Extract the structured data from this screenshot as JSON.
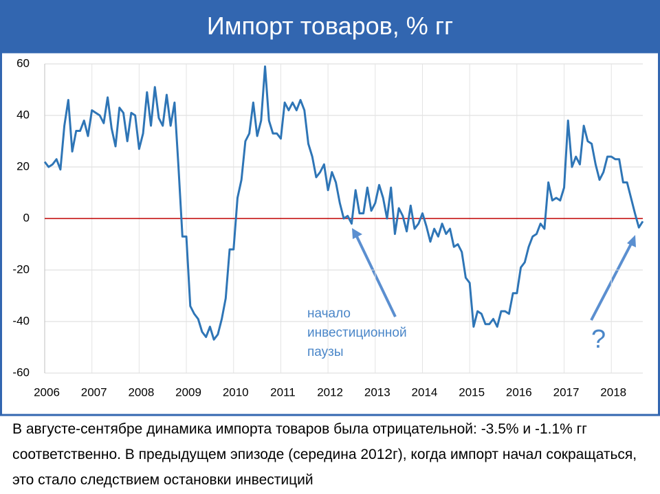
{
  "slide_title": "Импорт товаров, % гг",
  "chart_data": {
    "type": "line",
    "categories": [
      "2006",
      null,
      null,
      null,
      null,
      null,
      null,
      null,
      null,
      null,
      null,
      null,
      "2007",
      null,
      null,
      null,
      null,
      null,
      null,
      null,
      null,
      null,
      null,
      null,
      "2008",
      null,
      null,
      null,
      null,
      null,
      null,
      null,
      null,
      null,
      null,
      null,
      "2009",
      null,
      null,
      null,
      null,
      null,
      null,
      null,
      null,
      null,
      null,
      null,
      "2010",
      null,
      null,
      null,
      null,
      null,
      null,
      null,
      null,
      null,
      null,
      null,
      "2011",
      null,
      null,
      null,
      null,
      null,
      null,
      null,
      null,
      null,
      null,
      null,
      "2012",
      null,
      null,
      null,
      null,
      null,
      null,
      null,
      null,
      null,
      null,
      null,
      "2013",
      null,
      null,
      null,
      null,
      null,
      null,
      null,
      null,
      null,
      null,
      null,
      "2014",
      null,
      null,
      null,
      null,
      null,
      null,
      null,
      null,
      null,
      null,
      null,
      "2015",
      null,
      null,
      null,
      null,
      null,
      null,
      null,
      null,
      null,
      null,
      null,
      "2016",
      null,
      null,
      null,
      null,
      null,
      null,
      null,
      null,
      null,
      null,
      null,
      "2017",
      null,
      null,
      null,
      null,
      null,
      null,
      null,
      null,
      null,
      null,
      null,
      "2018",
      null,
      null,
      null,
      null,
      null,
      null,
      null,
      null
    ],
    "series": [
      {
        "name": "Импорт товаров",
        "color": "#2e75b6",
        "values": [
          22,
          20,
          21,
          23,
          19,
          36,
          46,
          26,
          34,
          34,
          38,
          32,
          42,
          41,
          40,
          37,
          47,
          35,
          28,
          43,
          41,
          30,
          41,
          40,
          27,
          33,
          49,
          36,
          51,
          39,
          36,
          48,
          36,
          45,
          20,
          -7,
          -7,
          -34,
          -37,
          -39,
          -44,
          -46,
          -42,
          -47,
          -45,
          -39,
          -31,
          -12,
          -12,
          8,
          15,
          30,
          33,
          45,
          32,
          38,
          59,
          38,
          33,
          33,
          31,
          45,
          42,
          45,
          42,
          46,
          42,
          29,
          24,
          16,
          18,
          21,
          11,
          18,
          14,
          6,
          0,
          1,
          -2,
          11,
          2,
          2,
          12,
          3,
          6,
          13,
          8,
          0,
          12,
          -6,
          4,
          1,
          -5,
          5,
          -4,
          -2,
          2,
          -3,
          -9,
          -4,
          -7,
          -2,
          -6,
          -4,
          -11,
          -10,
          -13,
          -23,
          -25,
          -42,
          -36,
          -37,
          -41,
          -41,
          -39,
          -42,
          -36,
          -36,
          -37,
          -29,
          -29,
          -19,
          -17,
          -11,
          -7,
          -6,
          -2,
          -4,
          14,
          7,
          8,
          7,
          12,
          38,
          20,
          24,
          21,
          36,
          30,
          29,
          21,
          15,
          18,
          24,
          24,
          23,
          23,
          14,
          14,
          8,
          2,
          -3.5,
          -1.1
        ]
      }
    ],
    "ylim": [
      -60,
      60
    ],
    "yticks": [
      -60,
      -40,
      -20,
      0,
      20,
      40,
      60
    ],
    "grid": true,
    "zero_line_color": "#c00000",
    "annotation_pause": [
      "начало",
      "инвестиционной",
      "паузы"
    ],
    "annotation_question": "?"
  },
  "footer_text": "В августе-сентябре динамика импорта товаров была отрицательной: -3.5% и -1.1% гг соответственно. В предыдущем эпизоде (середина 2012г), когда импорт начал сокращаться, это стало следствием остановки инвестиций"
}
